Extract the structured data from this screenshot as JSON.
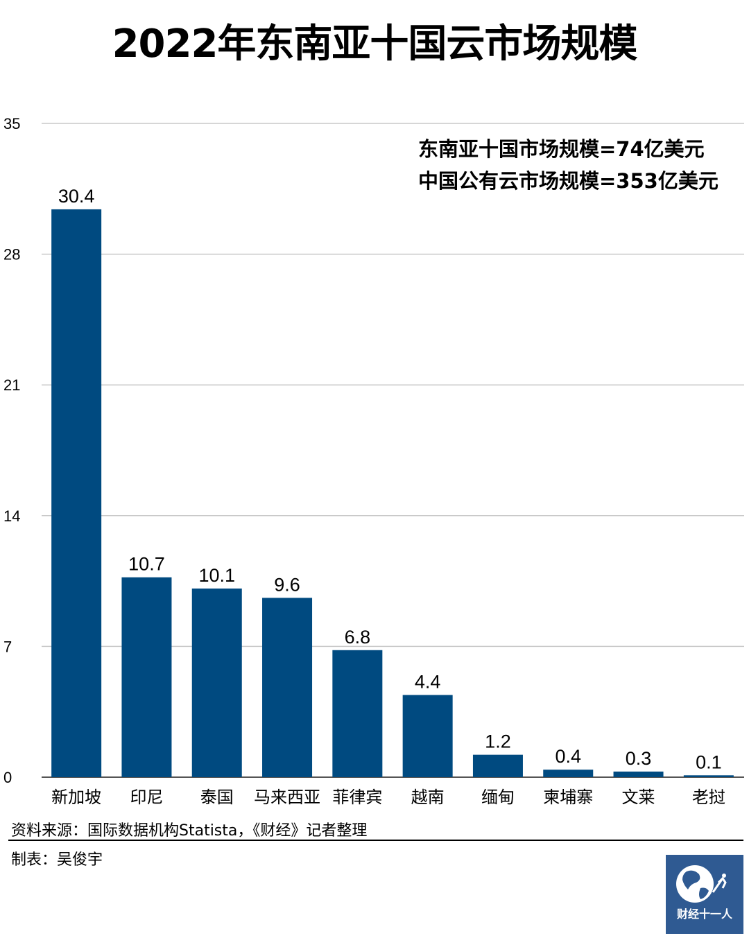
{
  "title": "2022年东南亚十国云市场规模",
  "notes": [
    "东南亚十国市场规模=74亿美元",
    "中国公有云市场规模=353亿美元"
  ],
  "source": "资料来源：国际数据机构Statista，《财经》记者整理",
  "maker": "制表：吴俊宇",
  "logo": {
    "text": "财经十一人",
    "icon": "globe-icon"
  },
  "colors": {
    "bar": "#004a80",
    "grid": "#c8c8c8"
  },
  "chart_data": {
    "type": "bar",
    "categories": [
      "新加坡",
      "印尼",
      "泰国",
      "马来西亚",
      "菲律宾",
      "越南",
      "缅甸",
      "柬埔寨",
      "文莱",
      "老挝"
    ],
    "values": [
      30.4,
      10.7,
      10.1,
      9.6,
      6.8,
      4.4,
      1.2,
      0.4,
      0.3,
      0.1
    ],
    "value_labels": [
      "30.4",
      "10.7",
      "10.1",
      "9.6",
      "6.8",
      "4.4",
      "1.2",
      "0.4",
      "0.3",
      "0.1"
    ],
    "yticks": [
      0,
      7,
      14,
      21,
      28,
      35
    ],
    "ylim": [
      0,
      35
    ],
    "grid": true
  }
}
